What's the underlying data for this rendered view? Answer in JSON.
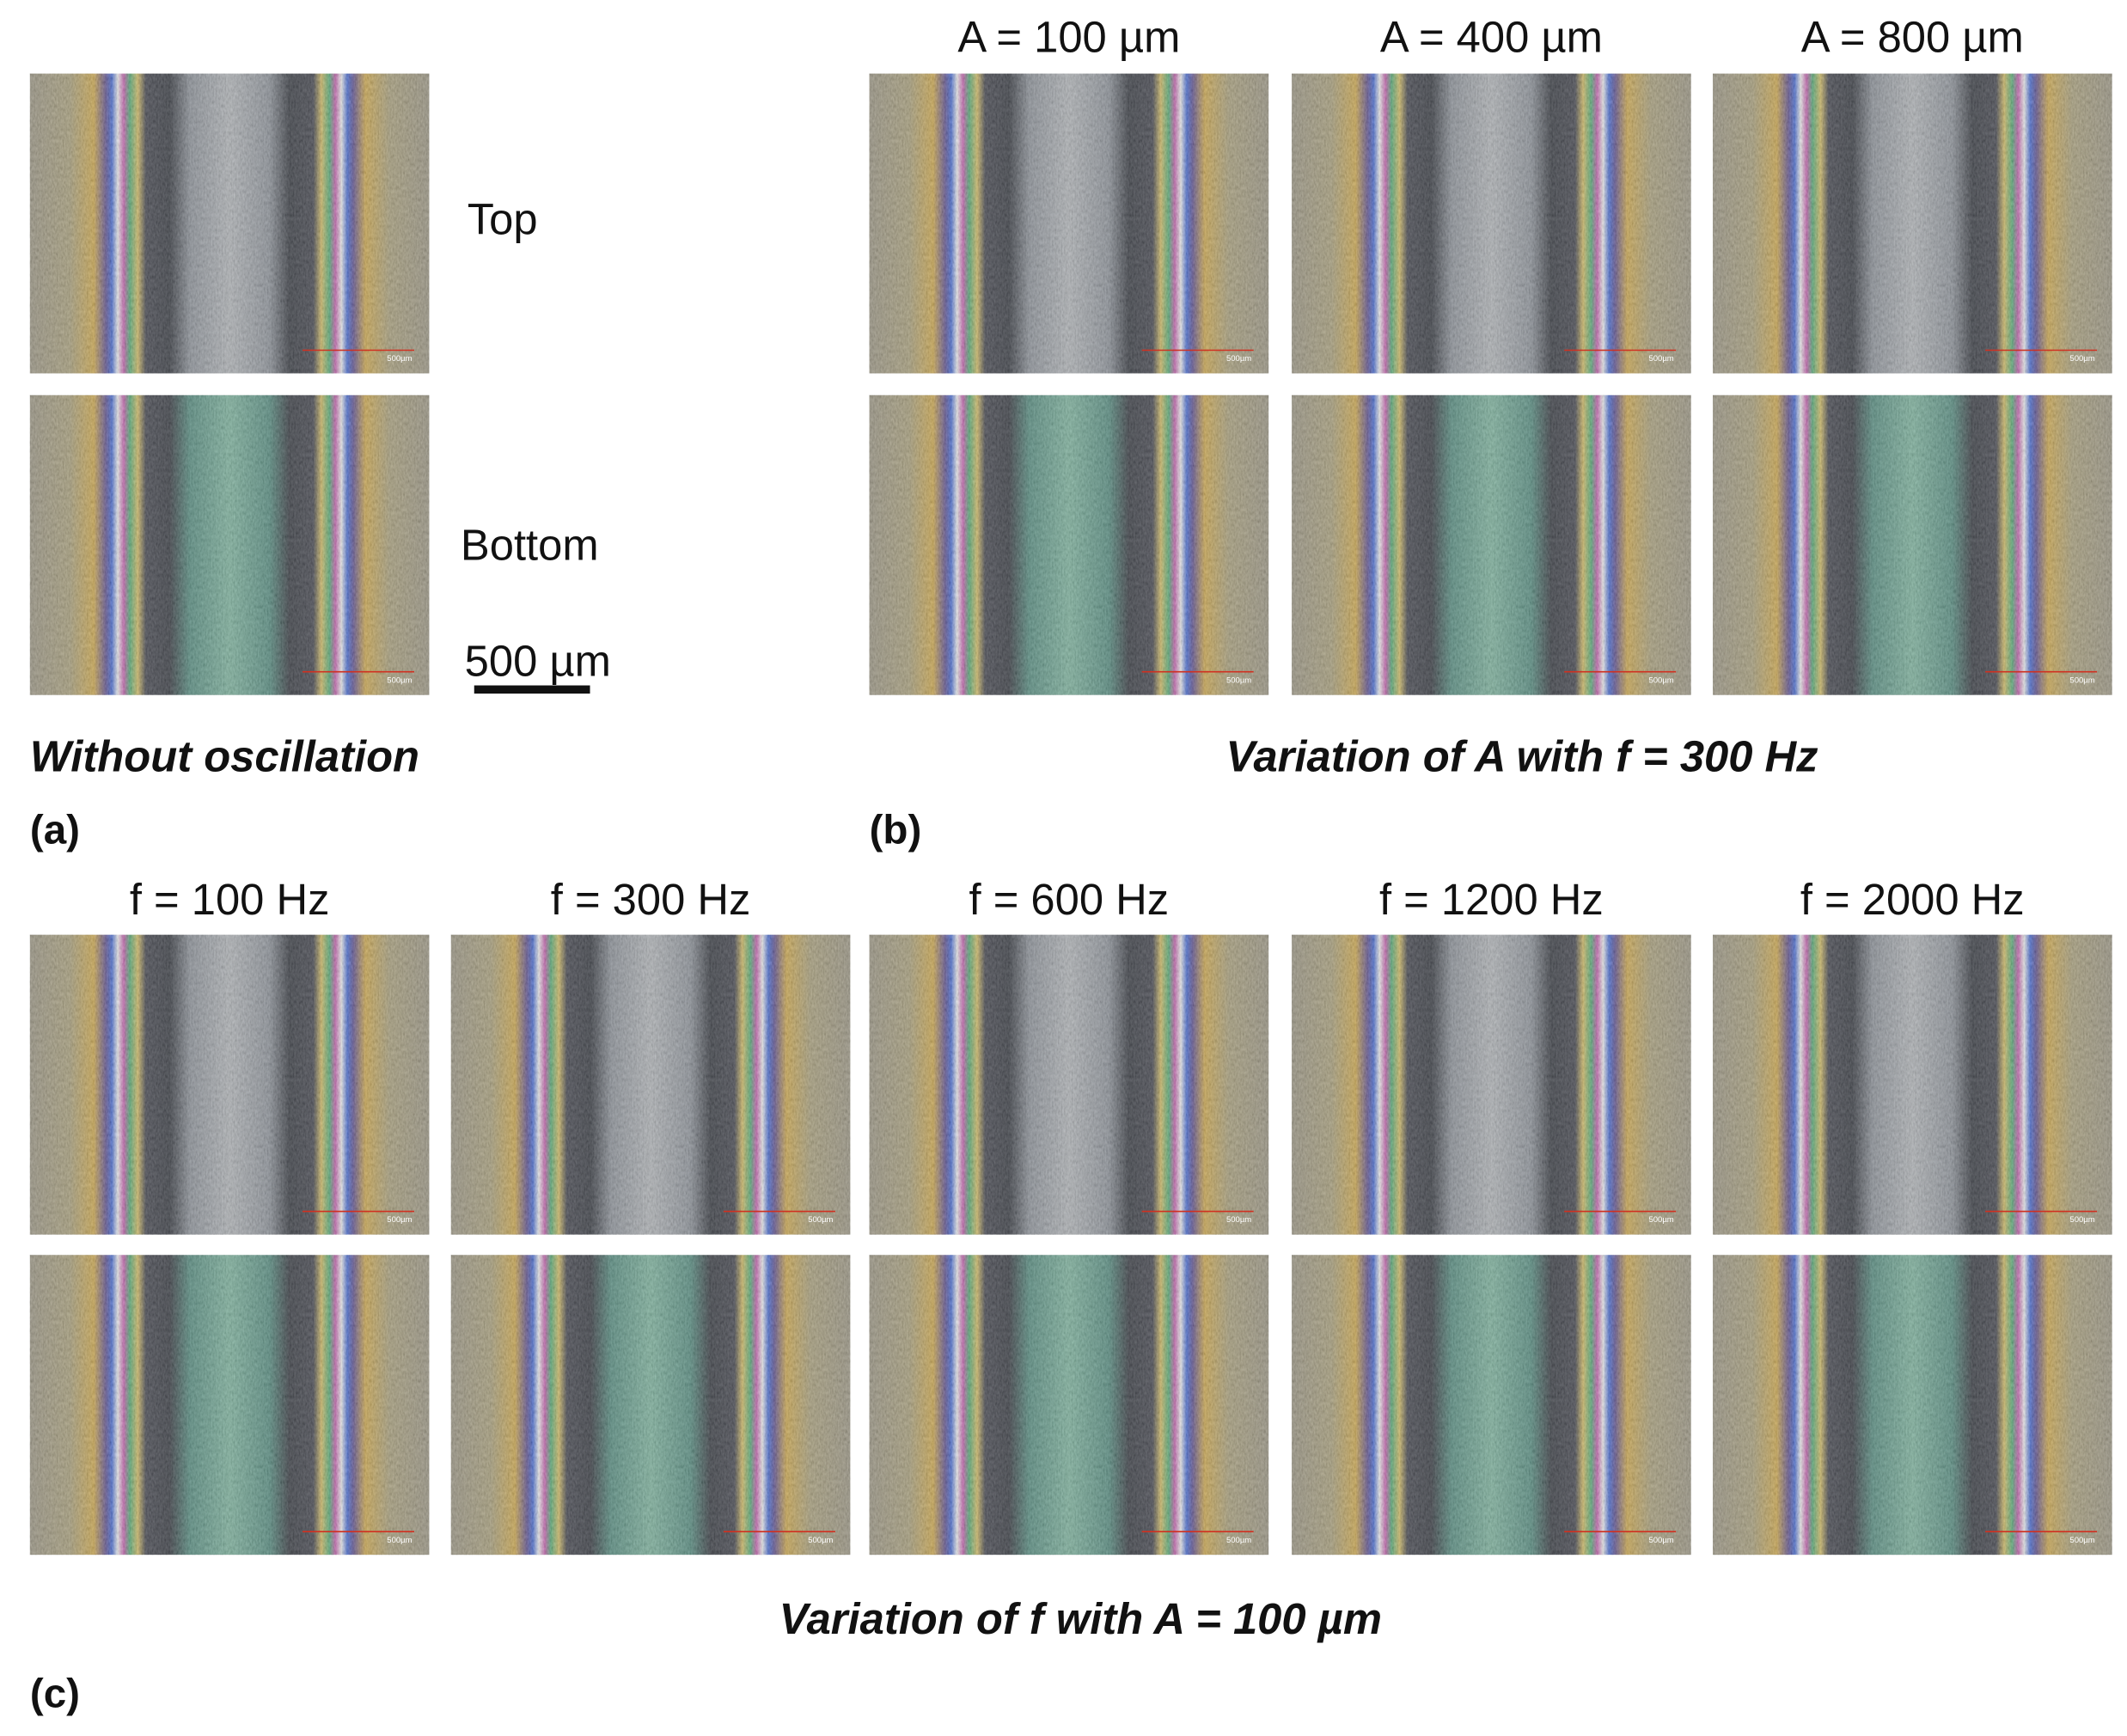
{
  "panel_a": {
    "rows": [
      "Top",
      "Bottom"
    ],
    "scale_bar": "500 µm",
    "caption": "Without oscillation",
    "tag": "(a)"
  },
  "panel_b": {
    "columns": [
      "A = 100 µm",
      "A = 400 µm",
      "A = 800 µm"
    ],
    "caption": "Variation of A with f = 300 Hz",
    "tag": "(b)"
  },
  "panel_c": {
    "columns": [
      "f = 100 Hz",
      "f = 300 Hz",
      "f  = 600 Hz",
      "f = 1200 Hz",
      "f = 2000 Hz"
    ],
    "caption": "Variation of f with A = 100 µm",
    "tag": "(c)"
  },
  "micrograph_scale_label": "500µm"
}
